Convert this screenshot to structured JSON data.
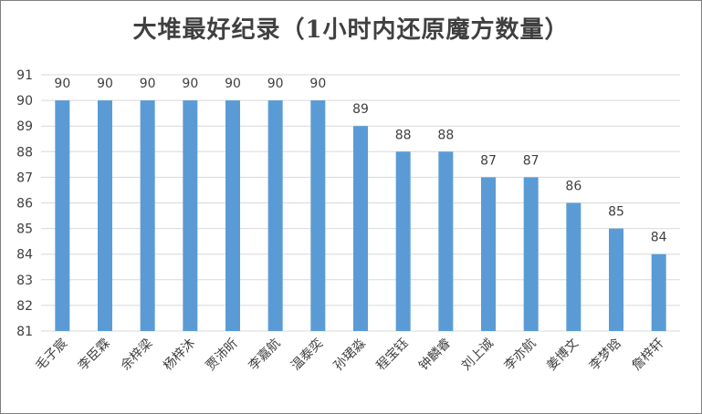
{
  "chart_data": {
    "type": "bar",
    "title": "大堆最好纪录（1小时内还原魔方数量）",
    "categories": [
      "毛子宸",
      "李臣霖",
      "余梓梁",
      "杨梓沐",
      "贾沛昕",
      "李嘉航",
      "温泰奕",
      "孙珺淼",
      "程宝钰",
      "钟麟睿",
      "刘上诚",
      "李亦航",
      "姜博文",
      "李梦晗",
      "詹梓轩"
    ],
    "values": [
      90,
      90,
      90,
      90,
      90,
      90,
      90,
      89,
      88,
      88,
      87,
      87,
      86,
      85,
      84
    ],
    "ylim": [
      81,
      91
    ],
    "yticks": [
      81,
      82,
      83,
      84,
      85,
      86,
      87,
      88,
      89,
      90,
      91
    ],
    "grid": true,
    "legend": "none",
    "colors": {
      "bar": "#5B9BD5",
      "grid": "#D9D9D9",
      "text": "#404040"
    }
  }
}
